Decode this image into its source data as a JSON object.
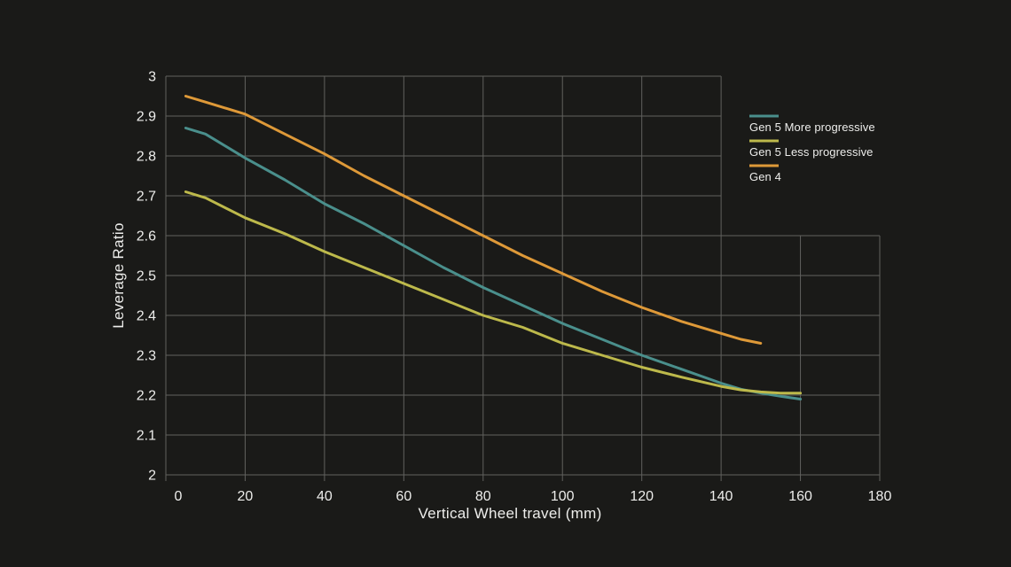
{
  "page": {
    "background_color": "#1A1A18",
    "text_color": "#EDEDEB"
  },
  "chart_data": {
    "type": "line",
    "title": "",
    "xlabel": "Vertical Wheel travel (mm)",
    "ylabel": "Leverage Ratio",
    "xlim": [
      0,
      180
    ],
    "ylim": [
      2,
      3
    ],
    "grid": true,
    "grid_color": "#61615E",
    "grid_notch": {
      "x": 140,
      "y": 2.6
    },
    "legend_position": "top-right",
    "xticks": [
      {
        "value": 0,
        "label": "0"
      },
      {
        "value": 20,
        "label": "20"
      },
      {
        "value": 40,
        "label": "40"
      },
      {
        "value": 60,
        "label": "60"
      },
      {
        "value": 80,
        "label": "80"
      },
      {
        "value": 100,
        "label": "100"
      },
      {
        "value": 120,
        "label": "120"
      },
      {
        "value": 140,
        "label": "140"
      },
      {
        "value": 160,
        "label": "160"
      },
      {
        "value": 180,
        "label": "180"
      }
    ],
    "yticks": [
      {
        "value": 2,
        "label": "2"
      },
      {
        "value": 2.1,
        "label": "2.1"
      },
      {
        "value": 2.2,
        "label": "2.2"
      },
      {
        "value": 2.3,
        "label": "2.3"
      },
      {
        "value": 2.4,
        "label": "2.4"
      },
      {
        "value": 2.5,
        "label": "2.5"
      },
      {
        "value": 2.6,
        "label": "2.6"
      },
      {
        "value": 2.7,
        "label": "2.7"
      },
      {
        "value": 2.8,
        "label": "2.8"
      },
      {
        "value": 2.9,
        "label": "2.9"
      },
      {
        "value": 3,
        "label": "3"
      }
    ],
    "series": [
      {
        "name": "Gen 5 More progressive",
        "color": "#4A8F8C",
        "points": [
          [
            5,
            2.87
          ],
          [
            10,
            2.855
          ],
          [
            20,
            2.795
          ],
          [
            30,
            2.74
          ],
          [
            40,
            2.68
          ],
          [
            50,
            2.63
          ],
          [
            60,
            2.575
          ],
          [
            70,
            2.52
          ],
          [
            80,
            2.47
          ],
          [
            90,
            2.425
          ],
          [
            100,
            2.38
          ],
          [
            110,
            2.34
          ],
          [
            120,
            2.3
          ],
          [
            130,
            2.265
          ],
          [
            140,
            2.23
          ],
          [
            145,
            2.215
          ],
          [
            150,
            2.205
          ],
          [
            155,
            2.197
          ],
          [
            160,
            2.19
          ]
        ]
      },
      {
        "name": "Gen 5 Less progressive",
        "color": "#BDB94B",
        "points": [
          [
            5,
            2.71
          ],
          [
            10,
            2.695
          ],
          [
            20,
            2.645
          ],
          [
            30,
            2.605
          ],
          [
            40,
            2.56
          ],
          [
            50,
            2.52
          ],
          [
            60,
            2.48
          ],
          [
            70,
            2.44
          ],
          [
            80,
            2.4
          ],
          [
            90,
            2.37
          ],
          [
            100,
            2.33
          ],
          [
            110,
            2.3
          ],
          [
            120,
            2.27
          ],
          [
            130,
            2.245
          ],
          [
            140,
            2.222
          ],
          [
            145,
            2.213
          ],
          [
            150,
            2.208
          ],
          [
            155,
            2.205
          ],
          [
            160,
            2.205
          ]
        ]
      },
      {
        "name": "Gen 4",
        "color": "#DE9938",
        "points": [
          [
            5,
            2.95
          ],
          [
            10,
            2.935
          ],
          [
            20,
            2.905
          ],
          [
            30,
            2.855
          ],
          [
            40,
            2.805
          ],
          [
            50,
            2.75
          ],
          [
            60,
            2.7
          ],
          [
            70,
            2.65
          ],
          [
            80,
            2.6
          ],
          [
            90,
            2.55
          ],
          [
            100,
            2.505
          ],
          [
            110,
            2.46
          ],
          [
            120,
            2.42
          ],
          [
            130,
            2.385
          ],
          [
            140,
            2.355
          ],
          [
            145,
            2.34
          ],
          [
            150,
            2.33
          ]
        ]
      }
    ]
  }
}
